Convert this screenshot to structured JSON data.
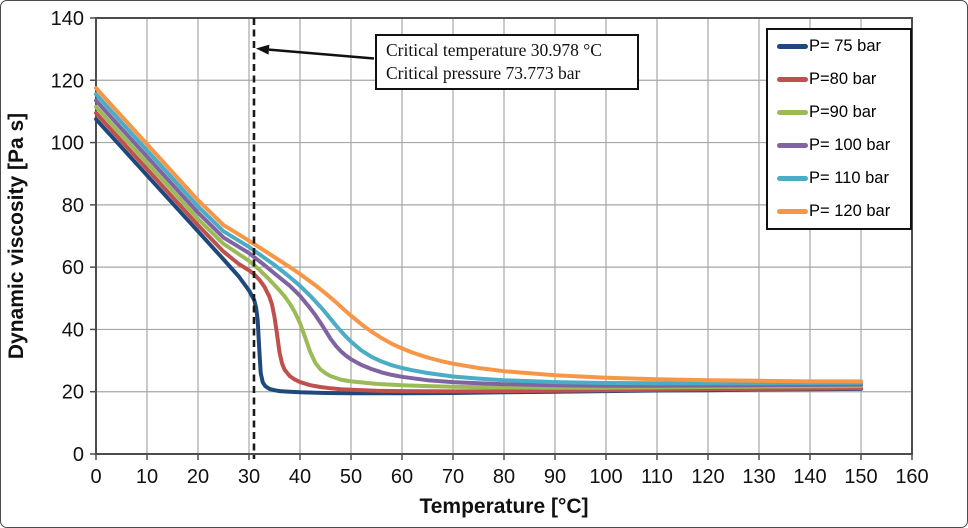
{
  "chart_data": {
    "type": "line",
    "title": "",
    "xlabel": "Temperature [°C]",
    "ylabel": "Dynamic viscosity [Pa s]",
    "xlim": [
      0,
      160
    ],
    "ylim": [
      0,
      140
    ],
    "x_ticks": [
      0,
      10,
      20,
      30,
      40,
      50,
      60,
      70,
      80,
      90,
      100,
      110,
      120,
      130,
      140,
      150,
      160
    ],
    "y_ticks": [
      0,
      20,
      40,
      60,
      80,
      100,
      120,
      140
    ],
    "grid": true,
    "grid_color": "#a6a6a6",
    "axis_color": "#4d4d4d",
    "legend_position": "top-right",
    "annotation": {
      "line1": "Critical temperature 30.978 °C",
      "line2": "Critical pressure 73.773 bar"
    },
    "critical_line": {
      "x": 30.978,
      "style": "dashed",
      "color": "#1a1a1a"
    },
    "series": [
      {
        "name": "P= 75 bar",
        "pressure_bar": 75,
        "color": "#1F497D",
        "points": [
          [
            0,
            107.5
          ],
          [
            5,
            98.5
          ],
          [
            10,
            89.5
          ],
          [
            15,
            80.5
          ],
          [
            20,
            71.5
          ],
          [
            25,
            62.5
          ],
          [
            28,
            57
          ],
          [
            30,
            52.5
          ],
          [
            31,
            49.5
          ],
          [
            31.4,
            47
          ],
          [
            31.7,
            43
          ],
          [
            32,
            34
          ],
          [
            32.3,
            26
          ],
          [
            32.7,
            23
          ],
          [
            33.2,
            21.8
          ],
          [
            34,
            20.9
          ],
          [
            35,
            20.5
          ],
          [
            36,
            20.2
          ],
          [
            38,
            20
          ],
          [
            40,
            19.8
          ],
          [
            45,
            19.6
          ],
          [
            50,
            19.5
          ],
          [
            60,
            19.5
          ],
          [
            70,
            19.6
          ],
          [
            80,
            19.8
          ],
          [
            90,
            20
          ],
          [
            100,
            20.2
          ],
          [
            110,
            20.4
          ],
          [
            120,
            20.5
          ],
          [
            130,
            20.7
          ],
          [
            140,
            20.8
          ],
          [
            150,
            20.9
          ]
        ]
      },
      {
        "name": "P=80 bar",
        "pressure_bar": 80,
        "color": "#C0504D",
        "points": [
          [
            0,
            109.5
          ],
          [
            5,
            100.5
          ],
          [
            10,
            91.5
          ],
          [
            15,
            82.5
          ],
          [
            20,
            73.5
          ],
          [
            25,
            65
          ],
          [
            28,
            61
          ],
          [
            30,
            59
          ],
          [
            31,
            57.7
          ],
          [
            32,
            56
          ],
          [
            33,
            53.8
          ],
          [
            34,
            50.5
          ],
          [
            34.5,
            48
          ],
          [
            35,
            44
          ],
          [
            35.5,
            38.5
          ],
          [
            36,
            32.5
          ],
          [
            36.5,
            29
          ],
          [
            37,
            27
          ],
          [
            38,
            25
          ],
          [
            39,
            23.9
          ],
          [
            40,
            23.1
          ],
          [
            42,
            22.1
          ],
          [
            44,
            21.5
          ],
          [
            46,
            21.1
          ],
          [
            48,
            20.8
          ],
          [
            50,
            20.6
          ],
          [
            55,
            20.3
          ],
          [
            60,
            20.2
          ],
          [
            70,
            20.1
          ],
          [
            80,
            20.2
          ],
          [
            90,
            20.3
          ],
          [
            100,
            20.5
          ],
          [
            110,
            20.6
          ],
          [
            120,
            20.8
          ],
          [
            130,
            20.9
          ],
          [
            140,
            21
          ],
          [
            150,
            21.1
          ]
        ]
      },
      {
        "name": "P=90 bar",
        "pressure_bar": 90,
        "color": "#9BBB59",
        "points": [
          [
            0,
            111.5
          ],
          [
            5,
            102.5
          ],
          [
            10,
            93.5
          ],
          [
            15,
            84.5
          ],
          [
            20,
            75.5
          ],
          [
            25,
            67.5
          ],
          [
            30,
            62
          ],
          [
            32,
            59.2
          ],
          [
            34,
            56
          ],
          [
            36,
            52.5
          ],
          [
            37,
            50.6
          ],
          [
            38,
            48.3
          ],
          [
            39,
            45.5
          ],
          [
            40,
            42
          ],
          [
            41,
            37.5
          ],
          [
            42,
            32.8
          ],
          [
            43,
            29.3
          ],
          [
            44,
            27.2
          ],
          [
            45,
            25.9
          ],
          [
            46,
            25
          ],
          [
            48,
            23.9
          ],
          [
            50,
            23.3
          ],
          [
            55,
            22.5
          ],
          [
            60,
            22.1
          ],
          [
            65,
            21.8
          ],
          [
            70,
            21.6
          ],
          [
            80,
            21.4
          ],
          [
            90,
            21.3
          ],
          [
            100,
            21.3
          ],
          [
            110,
            21.4
          ],
          [
            120,
            21.5
          ],
          [
            130,
            21.6
          ],
          [
            140,
            21.7
          ],
          [
            150,
            21.8
          ]
        ]
      },
      {
        "name": "P= 100 bar",
        "pressure_bar": 100,
        "color": "#8064A2",
        "points": [
          [
            0,
            113.5
          ],
          [
            5,
            104.5
          ],
          [
            10,
            95.5
          ],
          [
            15,
            86.5
          ],
          [
            20,
            77.5
          ],
          [
            25,
            69.5
          ],
          [
            30,
            64.5
          ],
          [
            33,
            60.7
          ],
          [
            35,
            58
          ],
          [
            38,
            54
          ],
          [
            40,
            50.8
          ],
          [
            42,
            46.8
          ],
          [
            43,
            44.6
          ],
          [
            44,
            42.2
          ],
          [
            45,
            39.6
          ],
          [
            46,
            37
          ],
          [
            47,
            34.8
          ],
          [
            48,
            33
          ],
          [
            49,
            31.6
          ],
          [
            50,
            30.4
          ],
          [
            52,
            28.6
          ],
          [
            54,
            27.3
          ],
          [
            56,
            26.2
          ],
          [
            58,
            25.4
          ],
          [
            60,
            24.8
          ],
          [
            65,
            23.7
          ],
          [
            70,
            23.1
          ],
          [
            75,
            22.7
          ],
          [
            80,
            22.4
          ],
          [
            90,
            22.1
          ],
          [
            100,
            21.9
          ],
          [
            110,
            21.9
          ],
          [
            120,
            22
          ],
          [
            130,
            22.1
          ],
          [
            140,
            22.2
          ],
          [
            150,
            22.3
          ]
        ]
      },
      {
        "name": "P= 110 bar",
        "pressure_bar": 110,
        "color": "#4BACC6",
        "points": [
          [
            0,
            115.5
          ],
          [
            5,
            106.5
          ],
          [
            10,
            97.5
          ],
          [
            15,
            88.5
          ],
          [
            20,
            79.5
          ],
          [
            25,
            71.5
          ],
          [
            30,
            66.5
          ],
          [
            33,
            63
          ],
          [
            35,
            60.7
          ],
          [
            38,
            56.8
          ],
          [
            40,
            54
          ],
          [
            42,
            50.8
          ],
          [
            44,
            47.3
          ],
          [
            45,
            45.4
          ],
          [
            46,
            43.4
          ],
          [
            47,
            41.4
          ],
          [
            48,
            39.5
          ],
          [
            49,
            37.7
          ],
          [
            50,
            36.1
          ],
          [
            52,
            33.3
          ],
          [
            54,
            31.2
          ],
          [
            56,
            29.7
          ],
          [
            58,
            28.5
          ],
          [
            60,
            27.6
          ],
          [
            62,
            26.9
          ],
          [
            65,
            26
          ],
          [
            70,
            24.9
          ],
          [
            75,
            24.2
          ],
          [
            80,
            23.7
          ],
          [
            85,
            23.4
          ],
          [
            90,
            23.1
          ],
          [
            100,
            22.8
          ],
          [
            110,
            22.7
          ],
          [
            120,
            22.7
          ],
          [
            130,
            22.7
          ],
          [
            140,
            22.8
          ],
          [
            150,
            22.9
          ]
        ]
      },
      {
        "name": "P= 120 bar",
        "pressure_bar": 120,
        "color": "#F79646",
        "points": [
          [
            0,
            117.5
          ],
          [
            5,
            108.5
          ],
          [
            10,
            99.5
          ],
          [
            15,
            90.5
          ],
          [
            20,
            81.5
          ],
          [
            25,
            73.5
          ],
          [
            30,
            68.5
          ],
          [
            33,
            65.3
          ],
          [
            35,
            63.2
          ],
          [
            38,
            60
          ],
          [
            40,
            57.8
          ],
          [
            43,
            54.2
          ],
          [
            45,
            51.6
          ],
          [
            47,
            48.8
          ],
          [
            48,
            47.3
          ],
          [
            50,
            44.4
          ],
          [
            52,
            41.7
          ],
          [
            54,
            39.3
          ],
          [
            56,
            37.2
          ],
          [
            58,
            35.4
          ],
          [
            60,
            33.9
          ],
          [
            62,
            32.6
          ],
          [
            65,
            31
          ],
          [
            68,
            29.7
          ],
          [
            70,
            29
          ],
          [
            75,
            27.6
          ],
          [
            80,
            26.6
          ],
          [
            85,
            25.9
          ],
          [
            90,
            25.3
          ],
          [
            95,
            24.9
          ],
          [
            100,
            24.5
          ],
          [
            110,
            24
          ],
          [
            120,
            23.7
          ],
          [
            130,
            23.5
          ],
          [
            140,
            23.3
          ],
          [
            150,
            23.3
          ]
        ]
      }
    ]
  }
}
